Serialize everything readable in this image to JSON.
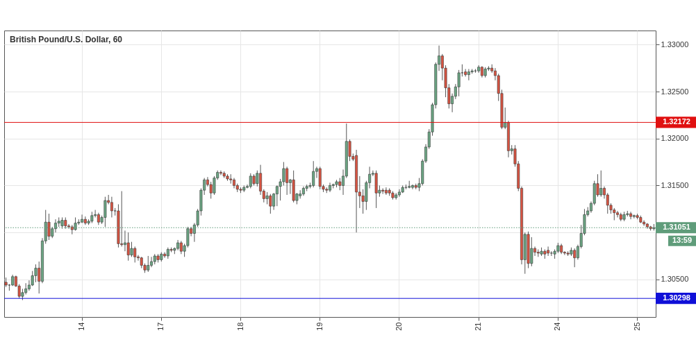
{
  "chart_data": {
    "type": "candlestick",
    "title": "British Pound/U.S. Dollar, 60",
    "categories": [
      null,
      null,
      null,
      null,
      null,
      null,
      null,
      null,
      null,
      null,
      null,
      null,
      null,
      null,
      null,
      null,
      null,
      null,
      null,
      null,
      null,
      null,
      null,
      "14",
      null,
      null,
      null,
      null,
      null,
      null,
      null,
      null,
      null,
      null,
      null,
      null,
      null,
      null,
      null,
      null,
      null,
      null,
      null,
      null,
      null,
      null,
      null,
      "17",
      null,
      null,
      null,
      null,
      null,
      null,
      null,
      null,
      null,
      null,
      null,
      null,
      null,
      null,
      null,
      null,
      null,
      null,
      null,
      null,
      null,
      null,
      null,
      "18",
      null,
      null,
      null,
      null,
      null,
      null,
      null,
      null,
      null,
      null,
      null,
      null,
      null,
      null,
      null,
      null,
      null,
      null,
      null,
      null,
      null,
      null,
      null,
      "19",
      null,
      null,
      null,
      null,
      null,
      null,
      null,
      null,
      null,
      null,
      null,
      null,
      null,
      null,
      null,
      null,
      null,
      null,
      null,
      null,
      null,
      null,
      null,
      "20",
      null,
      null,
      null,
      null,
      null,
      null,
      null,
      null,
      null,
      null,
      null,
      null,
      null,
      null,
      null,
      null,
      null,
      null,
      null,
      null,
      null,
      null,
      null,
      "21",
      null,
      null,
      null,
      null,
      null,
      null,
      null,
      null,
      null,
      null,
      null,
      null,
      null,
      null,
      null,
      null,
      null,
      null,
      null,
      null,
      null,
      null,
      null,
      "24",
      null,
      null,
      null,
      null,
      null,
      null,
      null,
      null,
      null,
      null,
      null,
      null,
      null,
      null,
      null,
      null,
      null,
      null,
      null,
      null,
      null,
      null,
      null,
      "25",
      null,
      null,
      null,
      null,
      null
    ],
    "ohlc": [
      [
        1.3047,
        1.3052,
        1.3042,
        1.3044
      ],
      [
        1.3044,
        1.3045,
        1.3038,
        1.3044
      ],
      [
        1.3044,
        1.3055,
        1.3043,
        1.3053
      ],
      [
        1.3053,
        1.3054,
        1.3042,
        1.3043
      ],
      [
        1.3043,
        1.3045,
        1.303,
        1.3032
      ],
      [
        1.3032,
        1.304,
        1.3028,
        1.3036
      ],
      [
        1.3036,
        1.3046,
        1.3034,
        1.304
      ],
      [
        1.304,
        1.3049,
        1.3038,
        1.3044
      ],
      [
        1.3044,
        1.3059,
        1.3043,
        1.3054
      ],
      [
        1.3054,
        1.3066,
        1.3047,
        1.3062
      ],
      [
        1.3062,
        1.3069,
        1.3035,
        1.3048
      ],
      [
        1.3048,
        1.3094,
        1.3046,
        1.3091
      ],
      [
        1.3091,
        1.3124,
        1.3088,
        1.3111
      ],
      [
        1.3111,
        1.312,
        1.3092,
        1.3096
      ],
      [
        1.3096,
        1.3106,
        1.3094,
        1.3104
      ],
      [
        1.3104,
        1.3114,
        1.31,
        1.311
      ],
      [
        1.311,
        1.3116,
        1.3106,
        1.3112
      ],
      [
        1.3107,
        1.3116,
        1.3104,
        1.3113
      ],
      [
        1.3113,
        1.3116,
        1.3104,
        1.3107
      ],
      [
        1.3107,
        1.3109,
        1.3104,
        1.3106
      ],
      [
        1.3106,
        1.3108,
        1.3098,
        1.3103
      ],
      [
        1.3103,
        1.3116,
        1.3102,
        1.311
      ],
      [
        1.311,
        1.3114,
        1.3108,
        1.3111
      ],
      [
        1.3111,
        1.3119,
        1.311,
        1.3114
      ],
      [
        1.3114,
        1.3117,
        1.3108,
        1.311
      ],
      [
        1.311,
        1.3114,
        1.3108,
        1.3112
      ],
      [
        1.3112,
        1.3122,
        1.311,
        1.3118
      ],
      [
        1.3118,
        1.3124,
        1.3116,
        1.3119
      ],
      [
        1.3119,
        1.3121,
        1.3108,
        1.3111
      ],
      [
        1.3111,
        1.3118,
        1.3109,
        1.3116
      ],
      [
        1.3116,
        1.3138,
        1.3106,
        1.3134
      ],
      [
        1.3134,
        1.314,
        1.313,
        1.3132
      ],
      [
        1.3132,
        1.3138,
        1.3116,
        1.3123
      ],
      [
        1.3123,
        1.3126,
        1.3118,
        1.3123
      ],
      [
        1.3123,
        1.313,
        1.3084,
        1.3088
      ],
      [
        1.3088,
        1.3144,
        1.3085,
        1.3087
      ],
      [
        1.3087,
        1.3102,
        1.308,
        1.3089
      ],
      [
        1.3089,
        1.31,
        1.307,
        1.3076
      ],
      [
        1.3076,
        1.309,
        1.3074,
        1.3083
      ],
      [
        1.3083,
        1.3085,
        1.3068,
        1.3074
      ],
      [
        1.3074,
        1.3076,
        1.307,
        1.3073
      ],
      [
        1.3073,
        1.3074,
        1.3062,
        1.3065
      ],
      [
        1.3065,
        1.3067,
        1.3057,
        1.306
      ],
      [
        1.306,
        1.3075,
        1.3058,
        1.3065
      ],
      [
        1.3065,
        1.3074,
        1.3063,
        1.3069
      ],
      [
        1.3069,
        1.3077,
        1.3066,
        1.3075
      ],
      [
        1.3075,
        1.3077,
        1.3068,
        1.3071
      ],
      [
        1.3071,
        1.3079,
        1.3069,
        1.3077
      ],
      [
        1.3077,
        1.3079,
        1.3073,
        1.3075
      ],
      [
        1.3075,
        1.3084,
        1.3072,
        1.3082
      ],
      [
        1.3082,
        1.3084,
        1.3079,
        1.3081
      ],
      [
        1.3081,
        1.3084,
        1.3077,
        1.3083
      ],
      [
        1.3083,
        1.3092,
        1.3081,
        1.3089
      ],
      [
        1.3089,
        1.3091,
        1.3077,
        1.308
      ],
      [
        1.308,
        1.3088,
        1.3074,
        1.3086
      ],
      [
        1.3086,
        1.3106,
        1.3084,
        1.3104
      ],
      [
        1.3104,
        1.3106,
        1.3096,
        1.3099
      ],
      [
        1.3099,
        1.311,
        1.309,
        1.3108
      ],
      [
        1.3108,
        1.3125,
        1.3106,
        1.3123
      ],
      [
        1.3123,
        1.3147,
        1.3118,
        1.3145
      ],
      [
        1.3145,
        1.3158,
        1.314,
        1.3156
      ],
      [
        1.3156,
        1.3159,
        1.3149,
        1.3151
      ],
      [
        1.3151,
        1.3154,
        1.3136,
        1.3142
      ],
      [
        1.3142,
        1.316,
        1.314,
        1.3158
      ],
      [
        1.3158,
        1.3166,
        1.3156,
        1.3164
      ],
      [
        1.3164,
        1.3166,
        1.3161,
        1.3163
      ],
      [
        1.3163,
        1.3165,
        1.3158,
        1.316
      ],
      [
        1.316,
        1.3162,
        1.3155,
        1.3157
      ],
      [
        1.3157,
        1.3162,
        1.3152,
        1.3156
      ],
      [
        1.3156,
        1.3158,
        1.3147,
        1.315
      ],
      [
        1.315,
        1.3152,
        1.3143,
        1.3146
      ],
      [
        1.3146,
        1.3148,
        1.3142,
        1.3145
      ],
      [
        1.3145,
        1.315,
        1.3143,
        1.3148
      ],
      [
        1.3148,
        1.3151,
        1.3147,
        1.3149
      ],
      [
        1.3149,
        1.3163,
        1.3147,
        1.316
      ],
      [
        1.316,
        1.3162,
        1.315,
        1.3152
      ],
      [
        1.3152,
        1.3166,
        1.3149,
        1.3163
      ],
      [
        1.3163,
        1.3172,
        1.314,
        1.3144
      ],
      [
        1.3144,
        1.3146,
        1.3132,
        1.3136
      ],
      [
        1.3136,
        1.3143,
        1.313,
        1.3139
      ],
      [
        1.3139,
        1.3141,
        1.312,
        1.3128
      ],
      [
        1.3128,
        1.3142,
        1.3124,
        1.3141
      ],
      [
        1.3141,
        1.315,
        1.3128,
        1.3149
      ],
      [
        1.3149,
        1.3157,
        1.3134,
        1.3154
      ],
      [
        1.3154,
        1.3175,
        1.315,
        1.3168
      ],
      [
        1.3168,
        1.317,
        1.314,
        1.3153
      ],
      [
        1.3153,
        1.3157,
        1.3141,
        1.3156
      ],
      [
        1.3156,
        1.3166,
        1.3132,
        1.3134
      ],
      [
        1.3134,
        1.3142,
        1.313,
        1.3141
      ],
      [
        1.3139,
        1.3145,
        1.3136,
        1.3141
      ],
      [
        1.3141,
        1.3149,
        1.3139,
        1.3147
      ],
      [
        1.3147,
        1.3151,
        1.3144,
        1.3149
      ],
      [
        1.3149,
        1.3153,
        1.3147,
        1.315
      ],
      [
        1.315,
        1.3176,
        1.3148,
        1.3165
      ],
      [
        1.3165,
        1.317,
        1.3158,
        1.3168
      ],
      [
        1.3168,
        1.317,
        1.3146,
        1.3149
      ],
      [
        1.3149,
        1.3151,
        1.3143,
        1.3146
      ],
      [
        1.3146,
        1.3148,
        1.3142,
        1.3145
      ],
      [
        1.3145,
        1.3153,
        1.3143,
        1.315
      ],
      [
        1.315,
        1.3152,
        1.3147,
        1.3151
      ],
      [
        1.3151,
        1.3156,
        1.3148,
        1.3154
      ],
      [
        1.3154,
        1.3158,
        1.3145,
        1.315
      ],
      [
        1.315,
        1.3167,
        1.314,
        1.316
      ],
      [
        1.316,
        1.3216,
        1.3158,
        1.3197
      ],
      [
        1.3197,
        1.3199,
        1.3176,
        1.3181
      ],
      [
        1.3181,
        1.3184,
        1.3176,
        1.3178
      ],
      [
        1.3182,
        1.3188,
        1.31,
        1.3143
      ],
      [
        1.3143,
        1.316,
        1.3126,
        1.3139
      ],
      [
        1.3139,
        1.3146,
        1.312,
        1.3133
      ],
      [
        1.3133,
        1.3155,
        1.3124,
        1.3153
      ],
      [
        1.3153,
        1.317,
        1.3147,
        1.3162
      ],
      [
        1.3162,
        1.3166,
        1.316,
        1.3163
      ],
      [
        1.3163,
        1.3166,
        1.3126,
        1.3142
      ],
      [
        1.3142,
        1.315,
        1.3138,
        1.3145
      ],
      [
        1.3145,
        1.3147,
        1.3141,
        1.3144
      ],
      [
        1.3145,
        1.3148,
        1.314,
        1.3142
      ],
      [
        1.3145,
        1.3147,
        1.3139,
        1.3142
      ],
      [
        1.3142,
        1.3144,
        1.3135,
        1.3137
      ],
      [
        1.3137,
        1.3142,
        1.3135,
        1.314
      ],
      [
        1.314,
        1.3146,
        1.3138,
        1.3143
      ],
      [
        1.3143,
        1.315,
        1.3142,
        1.3148
      ],
      [
        1.3148,
        1.3151,
        1.3146,
        1.3148
      ],
      [
        1.3148,
        1.3155,
        1.3147,
        1.3149
      ],
      [
        1.3148,
        1.3151,
        1.3146,
        1.315
      ],
      [
        1.315,
        1.3152,
        1.3146,
        1.3148
      ],
      [
        1.3148,
        1.3158,
        1.3144,
        1.3152
      ],
      [
        1.3152,
        1.3178,
        1.315,
        1.3176
      ],
      [
        1.3176,
        1.3194,
        1.3174,
        1.3191
      ],
      [
        1.3191,
        1.321,
        1.3189,
        1.3207
      ],
      [
        1.3207,
        1.3238,
        1.3203,
        1.3236
      ],
      [
        1.3236,
        1.3281,
        1.3232,
        1.3279
      ],
      [
        1.3279,
        1.3299,
        1.3272,
        1.3288
      ],
      [
        1.3288,
        1.329,
        1.3262,
        1.3275
      ],
      [
        1.3275,
        1.3278,
        1.3244,
        1.3254
      ],
      [
        1.3254,
        1.3258,
        1.3232,
        1.3237
      ],
      [
        1.3237,
        1.3248,
        1.3228,
        1.3245
      ],
      [
        1.3245,
        1.3258,
        1.3242,
        1.3255
      ],
      [
        1.3255,
        1.3273,
        1.3245,
        1.327
      ],
      [
        1.327,
        1.3279,
        1.3266,
        1.327
      ],
      [
        1.3271,
        1.3274,
        1.3266,
        1.3268
      ],
      [
        1.3268,
        1.3274,
        1.3262,
        1.3271
      ],
      [
        1.3271,
        1.3274,
        1.3269,
        1.3272
      ],
      [
        1.3272,
        1.3274,
        1.327,
        1.3272
      ],
      [
        1.3272,
        1.3278,
        1.327,
        1.3276
      ],
      [
        1.3276,
        1.3277,
        1.3265,
        1.3267
      ],
      [
        1.3267,
        1.3276,
        1.3265,
        1.3274
      ],
      [
        1.3274,
        1.3277,
        1.3272,
        1.3275
      ],
      [
        1.3275,
        1.3279,
        1.327,
        1.3272
      ],
      [
        1.3272,
        1.3275,
        1.3262,
        1.3267
      ],
      [
        1.3267,
        1.3269,
        1.324,
        1.3248
      ],
      [
        1.3248,
        1.3252,
        1.321,
        1.3212
      ],
      [
        1.3212,
        1.3233,
        1.321,
        1.3217
      ],
      [
        1.3217,
        1.3219,
        1.318,
        1.3187
      ],
      [
        1.3187,
        1.3193,
        1.3183,
        1.3189
      ],
      [
        1.3189,
        1.3193,
        1.317,
        1.3173
      ],
      [
        1.3173,
        1.3176,
        1.3144,
        1.3147
      ],
      [
        1.3147,
        1.3149,
        1.3066,
        1.3071
      ],
      [
        1.3071,
        1.31,
        1.3056,
        1.3098
      ],
      [
        1.3098,
        1.3101,
        1.3062,
        1.3067
      ],
      [
        1.3067,
        1.3095,
        1.3064,
        1.3083
      ],
      [
        1.3083,
        1.3085,
        1.3075,
        1.3079
      ],
      [
        1.3079,
        1.3082,
        1.3074,
        1.3078
      ],
      [
        1.3077,
        1.3084,
        1.3075,
        1.308
      ],
      [
        1.308,
        1.3082,
        1.3072,
        1.3077
      ],
      [
        1.3081,
        1.3085,
        1.3075,
        1.3078
      ],
      [
        1.3078,
        1.308,
        1.3075,
        1.3078
      ],
      [
        1.3077,
        1.3082,
        1.3072,
        1.308
      ],
      [
        1.308,
        1.3089,
        1.3078,
        1.3086
      ],
      [
        1.3086,
        1.3088,
        1.3077,
        1.3079
      ],
      [
        1.3079,
        1.308,
        1.3076,
        1.3078
      ],
      [
        1.3078,
        1.308,
        1.3075,
        1.3077
      ],
      [
        1.3077,
        1.3084,
        1.3075,
        1.3081
      ],
      [
        1.3081,
        1.3083,
        1.3063,
        1.3073
      ],
      [
        1.3073,
        1.3087,
        1.3071,
        1.3085
      ],
      [
        1.3085,
        1.3108,
        1.3083,
        1.3099
      ],
      [
        1.3099,
        1.3125,
        1.3097,
        1.3119
      ],
      [
        1.3119,
        1.3127,
        1.3117,
        1.3123
      ],
      [
        1.3123,
        1.3133,
        1.3121,
        1.3131
      ],
      [
        1.3131,
        1.3155,
        1.3129,
        1.3152
      ],
      [
        1.3152,
        1.3162,
        1.3138,
        1.314
      ],
      [
        1.314,
        1.3166,
        1.3138,
        1.3147
      ],
      [
        1.3147,
        1.3149,
        1.3136,
        1.314
      ],
      [
        1.314,
        1.3142,
        1.312,
        1.3129
      ],
      [
        1.3129,
        1.3131,
        1.312,
        1.3124
      ],
      [
        1.3124,
        1.3126,
        1.3113,
        1.3121
      ],
      [
        1.3121,
        1.3123,
        1.3116,
        1.3119
      ],
      [
        1.3119,
        1.3121,
        1.3112,
        1.3114
      ],
      [
        1.3114,
        1.3122,
        1.3112,
        1.3119
      ],
      [
        1.3119,
        1.3123,
        1.3117,
        1.312
      ],
      [
        1.312,
        1.3122,
        1.3114,
        1.3117
      ],
      [
        1.3117,
        1.3119,
        1.3115,
        1.3118
      ],
      [
        1.3118,
        1.312,
        1.3114,
        1.3116
      ],
      [
        1.3116,
        1.3118,
        1.311,
        1.3111
      ],
      [
        1.3111,
        1.3113,
        1.3107,
        1.3109
      ],
      [
        1.3109,
        1.311,
        1.3104,
        1.3106
      ],
      [
        1.3106,
        1.3107,
        1.3102,
        1.3104
      ],
      [
        1.3104,
        1.3109,
        1.3102,
        1.3105
      ]
    ],
    "ylim": [
      1.301,
      1.3315
    ],
    "yticks": [
      {
        "value": 1.305,
        "label": "1.30500"
      },
      {
        "value": 1.31,
        "label": null
      },
      {
        "value": 1.315,
        "label": "1.31500"
      },
      {
        "value": 1.32,
        "label": "1.32000"
      },
      {
        "value": 1.325,
        "label": "1.32500"
      },
      {
        "value": 1.33,
        "label": "1.33000"
      }
    ],
    "grid": true,
    "ref_lines": [
      {
        "axis": "y",
        "value": 1.32172,
        "label": "1.32172",
        "color": "#e01010",
        "line_style": "solid"
      },
      {
        "axis": "y",
        "value": 1.30298,
        "label": "1.30298",
        "color": "#1010d8",
        "line_style": "solid"
      },
      {
        "axis": "y",
        "value": 1.31051,
        "label": "1.31051",
        "color": "#5f9c7a",
        "line_style": "dotted"
      }
    ],
    "annotations": [
      "13:59"
    ]
  }
}
